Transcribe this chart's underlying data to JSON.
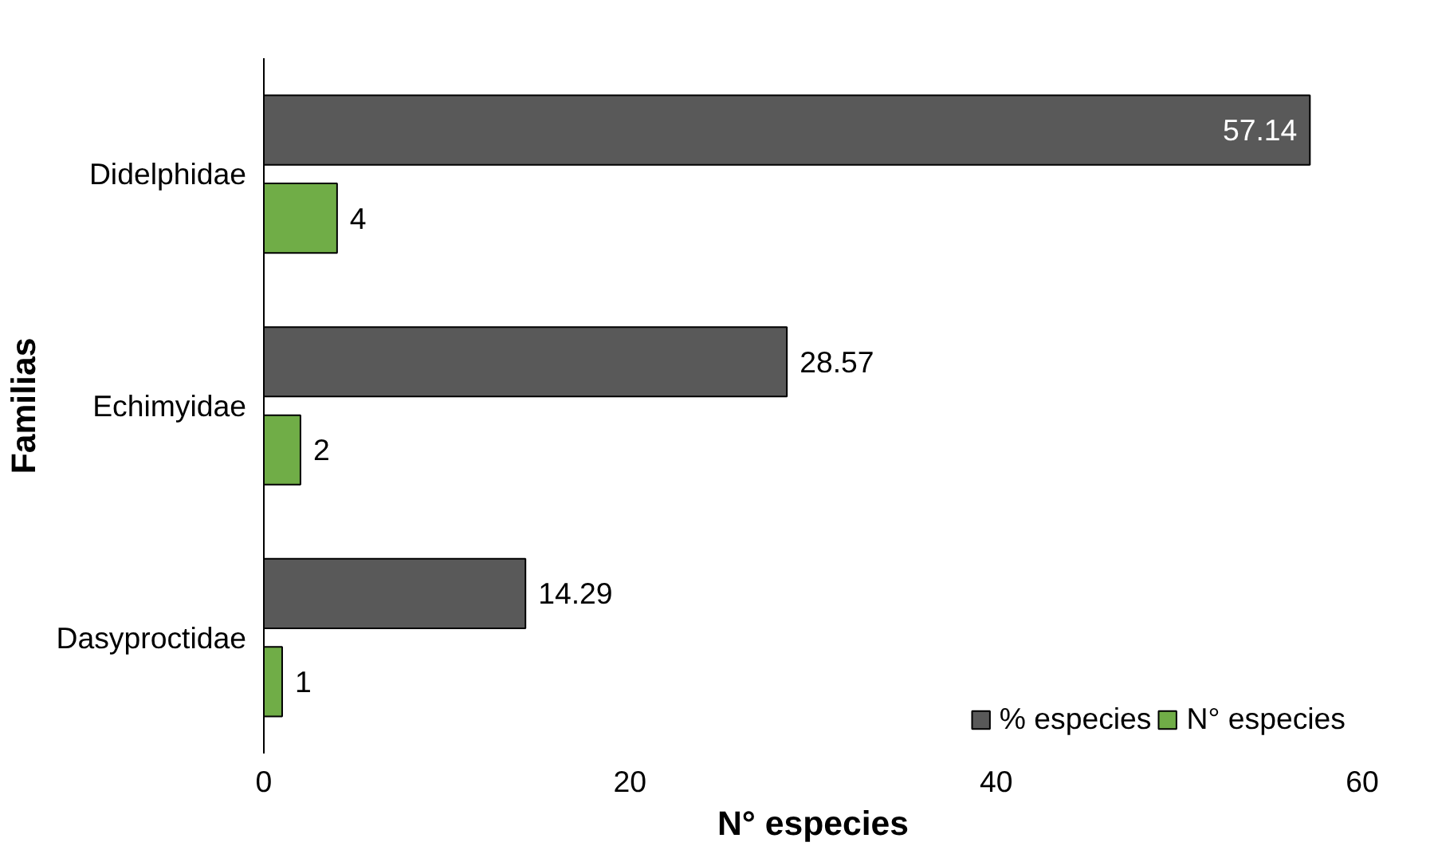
{
  "chart_data": {
    "type": "bar",
    "orientation": "horizontal",
    "xlabel": "N° especies",
    "ylabel": "Familias",
    "categories": [
      "Didelphidae",
      "Echimyidae",
      "Dasyproctidae"
    ],
    "series": [
      {
        "name": "% especies",
        "color": "#595959",
        "values": [
          57.14,
          28.57,
          14.29
        ]
      },
      {
        "name": "N° especies",
        "color": "#70ad47",
        "values": [
          4,
          2,
          1
        ]
      }
    ],
    "xlim": [
      0,
      60
    ],
    "xticks": [
      0,
      20,
      40,
      60
    ],
    "grid": false,
    "legend": "bottom right",
    "data_labels": true
  }
}
